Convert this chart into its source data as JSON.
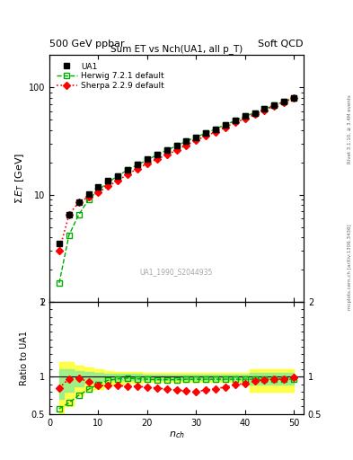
{
  "title_top": "500 GeV ppbar",
  "title_top_right": "Soft QCD",
  "title_main": "Sum ET vs Nch(UA1, all p_T)",
  "right_label": "Rivet 3.1.10, ≥ 3.4M events",
  "right_label2": "mcplots.cern.ch [arXiv:1306.3436]",
  "watermark": "UA1_1990_S2044935",
  "xlabel": "n_{ch}",
  "ylabel_main": "Σ E_T [GeV]",
  "ylabel_ratio": "Ratio to UA1",
  "ua1_nch": [
    2,
    4,
    6,
    8,
    10,
    12,
    14,
    16,
    18,
    20,
    22,
    24,
    26,
    28,
    30,
    32,
    34,
    36,
    38,
    40,
    42,
    44,
    46,
    48,
    50
  ],
  "ua1_sumEt": [
    3.5,
    6.5,
    8.5,
    10.2,
    11.8,
    13.5,
    15.0,
    17.0,
    19.0,
    21.5,
    23.5,
    26.0,
    28.5,
    31.5,
    34.5,
    37.5,
    41.0,
    45.0,
    49.0,
    54.0,
    58.0,
    63.0,
    68.0,
    74.0,
    80.0
  ],
  "herwig_nch": [
    2,
    4,
    6,
    8,
    10,
    12,
    14,
    16,
    18,
    20,
    22,
    24,
    26,
    28,
    30,
    32,
    34,
    36,
    38,
    40,
    42,
    44,
    46,
    48,
    50
  ],
  "herwig_sumEt": [
    1.5,
    4.2,
    6.5,
    9.0,
    11.0,
    13.0,
    15.0,
    17.0,
    19.0,
    21.0,
    23.5,
    26.0,
    28.5,
    31.5,
    34.5,
    37.5,
    41.0,
    45.0,
    49.0,
    54.0,
    58.0,
    63.0,
    68.0,
    74.0,
    80.0
  ],
  "herwig_ratio": [
    0.57,
    0.65,
    0.75,
    0.83,
    0.9,
    0.95,
    0.97,
    0.98,
    0.97,
    0.965,
    0.96,
    0.96,
    0.96,
    0.965,
    0.965,
    0.965,
    0.965,
    0.965,
    0.965,
    0.965,
    0.965,
    0.965,
    0.965,
    0.965,
    0.965
  ],
  "sherpa_nch": [
    2,
    4,
    6,
    8,
    10,
    12,
    14,
    16,
    18,
    20,
    22,
    24,
    26,
    28,
    30,
    32,
    34,
    36,
    38,
    40,
    42,
    44,
    46,
    48,
    50
  ],
  "sherpa_sumEt": [
    3.0,
    6.5,
    8.5,
    9.5,
    10.5,
    12.0,
    13.5,
    15.5,
    17.5,
    19.5,
    21.5,
    23.5,
    26.0,
    29.0,
    32.0,
    35.5,
    38.5,
    42.5,
    47.0,
    51.0,
    56.0,
    61.5,
    67.0,
    73.0,
    79.5
  ],
  "sherpa_ratio": [
    0.85,
    0.97,
    0.98,
    0.93,
    0.88,
    0.88,
    0.88,
    0.87,
    0.87,
    0.86,
    0.85,
    0.83,
    0.82,
    0.81,
    0.8,
    0.82,
    0.84,
    0.86,
    0.89,
    0.91,
    0.94,
    0.96,
    0.97,
    0.97,
    0.985
  ],
  "ua1_color": "#000000",
  "herwig_color": "#00aa00",
  "sherpa_color": "#ff0000",
  "band_lo_yellow": [
    0.4,
    0.6,
    0.75,
    0.82,
    0.84,
    0.88,
    0.9,
    0.92,
    0.92,
    0.93,
    0.93,
    0.93,
    0.93,
    0.93,
    0.93,
    0.93,
    0.93,
    0.93,
    0.93,
    0.93,
    0.8,
    0.8,
    0.8,
    0.8,
    0.8
  ],
  "band_hi_yellow": [
    1.2,
    1.2,
    1.15,
    1.12,
    1.1,
    1.08,
    1.06,
    1.06,
    1.06,
    1.05,
    1.05,
    1.05,
    1.05,
    1.05,
    1.05,
    1.05,
    1.05,
    1.05,
    1.05,
    1.05,
    1.1,
    1.1,
    1.1,
    1.1,
    1.1
  ],
  "band_lo_green": [
    0.7,
    0.8,
    0.87,
    0.92,
    0.94,
    0.95,
    0.95,
    0.96,
    0.96,
    0.96,
    0.96,
    0.96,
    0.96,
    0.96,
    0.96,
    0.96,
    0.96,
    0.96,
    0.96,
    0.96,
    0.9,
    0.9,
    0.9,
    0.9,
    0.9
  ],
  "band_hi_green": [
    1.1,
    1.1,
    1.08,
    1.06,
    1.05,
    1.04,
    1.04,
    1.04,
    1.04,
    1.03,
    1.03,
    1.03,
    1.03,
    1.03,
    1.03,
    1.03,
    1.03,
    1.03,
    1.03,
    1.03,
    1.05,
    1.05,
    1.05,
    1.05,
    1.05
  ],
  "xlim": [
    0,
    52
  ],
  "ylim_main_lo": 1.0,
  "ylim_main_hi": 200.0,
  "ylim_ratio": [
    0.5,
    2.0
  ],
  "main_yticks": [
    1,
    10,
    100
  ],
  "ratio_yticks": [
    0.5,
    1.0,
    2.0
  ]
}
